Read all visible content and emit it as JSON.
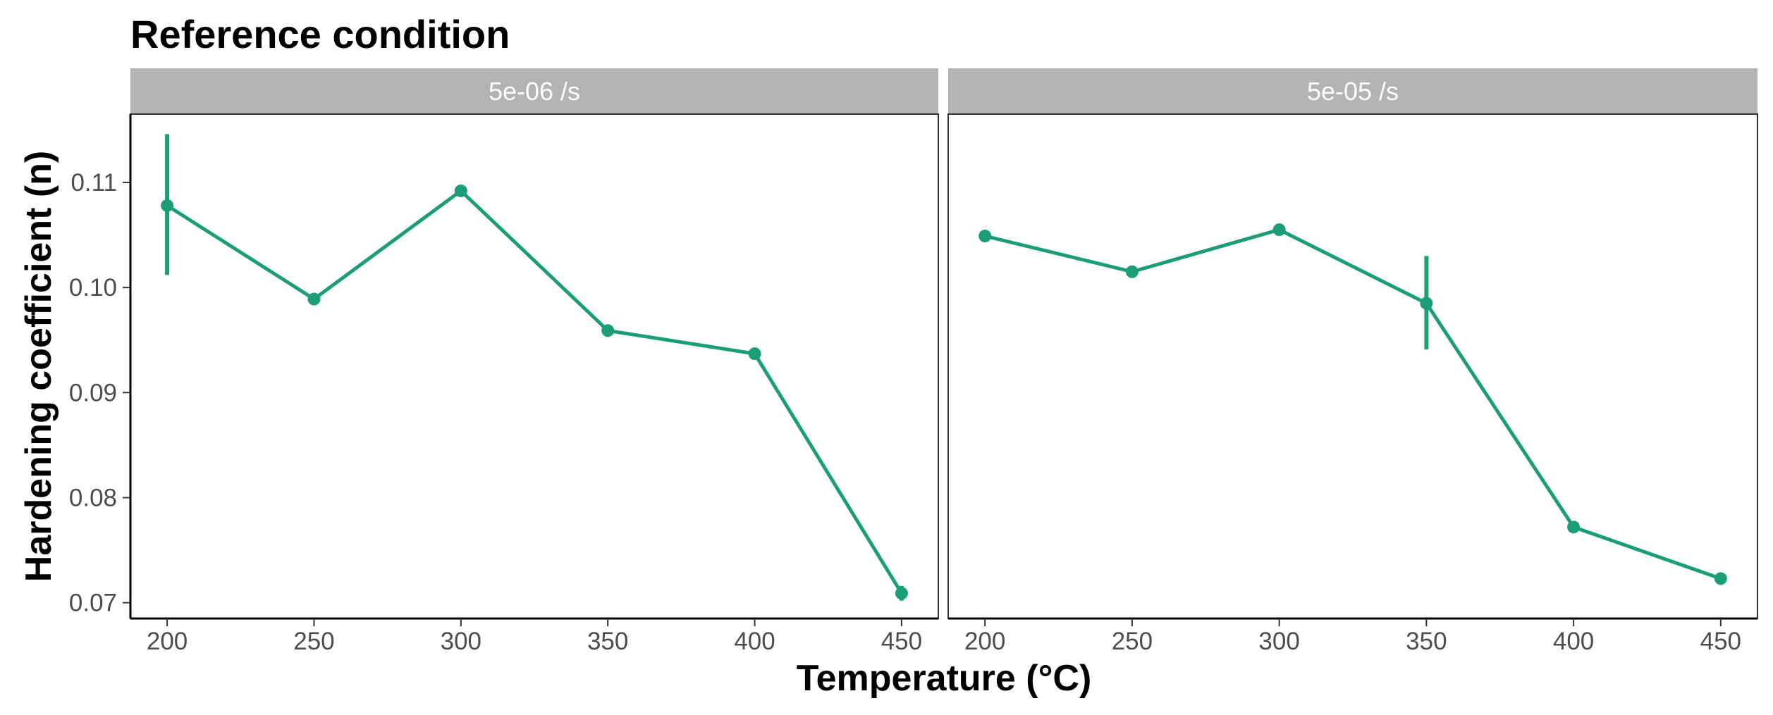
{
  "chart_data": {
    "type": "line",
    "title": "Reference condition",
    "xlabel": "Temperature (°C)",
    "ylabel": "Hardening coefficient (n)",
    "ylim": [
      0.0685,
      0.1165
    ],
    "xlim": [
      187.5,
      462.5
    ],
    "y_ticks": [
      0.07,
      0.08,
      0.09,
      0.1,
      0.11
    ],
    "y_tick_labels": [
      "0.07",
      "0.08",
      "0.09",
      "0.10",
      "0.11"
    ],
    "x_ticks": [
      200,
      250,
      300,
      350,
      400,
      450
    ],
    "x_tick_labels": [
      "200",
      "250",
      "300",
      "350",
      "400",
      "450"
    ],
    "colors": {
      "series": "#1b9e77",
      "strip": "#b3b3b3",
      "panel_border": "#333333"
    },
    "grid": false,
    "panels": [
      {
        "strip_label": "5e-06 /s",
        "points": [
          {
            "x": 200,
            "y": 0.1078,
            "ymin": 0.1012,
            "ymax": 0.1146
          },
          {
            "x": 250,
            "y": 0.0989
          },
          {
            "x": 300,
            "y": 0.1092
          },
          {
            "x": 350,
            "y": 0.0959
          },
          {
            "x": 400,
            "y": 0.0937
          },
          {
            "x": 450,
            "y": 0.0709,
            "ymin": 0.0702,
            "ymax": 0.0716
          }
        ]
      },
      {
        "strip_label": "5e-05 /s",
        "points": [
          {
            "x": 200,
            "y": 0.1049
          },
          {
            "x": 250,
            "y": 0.1015
          },
          {
            "x": 300,
            "y": 0.1055
          },
          {
            "x": 350,
            "y": 0.0985,
            "ymin": 0.0941,
            "ymax": 0.103
          },
          {
            "x": 400,
            "y": 0.0772
          },
          {
            "x": 450,
            "y": 0.0723
          }
        ]
      }
    ]
  }
}
